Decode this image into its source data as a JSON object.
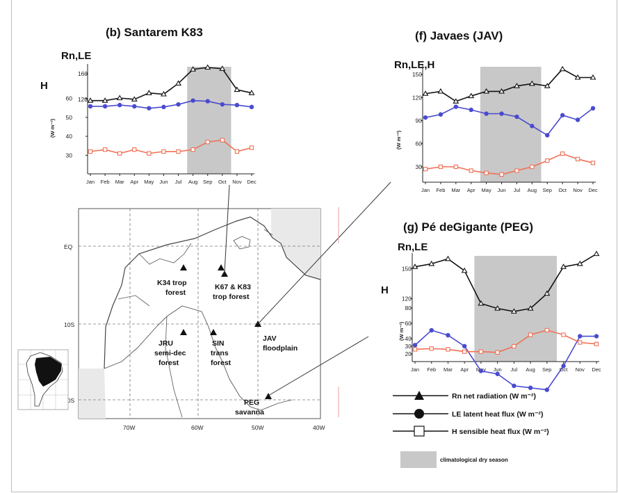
{
  "chart_data": [
    {
      "id": "santarem",
      "type": "line",
      "title": "(b)  Santarem K83",
      "ylabel_top": "Rn,LE",
      "ylabel_h": "H",
      "unit": "(W m⁻²)",
      "categories": [
        "Jan",
        "Feb",
        "Mar",
        "Apr",
        "May",
        "Jun",
        "Jul",
        "Aug",
        "Sep",
        "Oct",
        "Nov",
        "Dec"
      ],
      "upper_ticks": [
        "160",
        "120"
      ],
      "lower_ticks": [
        "60",
        "50",
        "40",
        "30"
      ],
      "dry_season": [
        6.6,
        9.6
      ],
      "series": [
        {
          "name": "Rn",
          "values": [
            118,
            118,
            122,
            120,
            130,
            128,
            145,
            167,
            170,
            168,
            135,
            130
          ]
        },
        {
          "name": "LE",
          "values": [
            109,
            109,
            111,
            109,
            106,
            108,
            112,
            118,
            117,
            112,
            111,
            108
          ]
        },
        {
          "name": "H",
          "values": [
            32,
            33,
            31,
            33,
            31,
            32,
            32,
            33,
            37,
            38,
            32,
            34
          ]
        }
      ]
    },
    {
      "id": "javaes",
      "type": "line",
      "title": "(f)   Javaes  (JAV)",
      "ylabel_top": "Rn,LE,H",
      "unit": "(W m⁻²)",
      "categories": [
        "Jan",
        "Feb",
        "Mar",
        "Apr",
        "May",
        "Jun",
        "Jul",
        "Aug",
        "Sep",
        "Oct",
        "Nov",
        "Dec"
      ],
      "ticks": [
        "150",
        "120",
        "90",
        "60",
        "30"
      ],
      "dry_season": [
        3.6,
        7.6
      ],
      "series": [
        {
          "name": "Rn",
          "values": [
            125,
            128,
            115,
            122,
            128,
            128,
            135,
            138,
            135,
            157,
            146,
            146
          ]
        },
        {
          "name": "LE",
          "values": [
            94,
            98,
            108,
            104,
            99,
            99,
            95,
            83,
            71,
            97,
            91,
            106
          ]
        },
        {
          "name": "H",
          "values": [
            27,
            30,
            30,
            25,
            22,
            20,
            25,
            30,
            38,
            47,
            40,
            35
          ]
        }
      ]
    },
    {
      "id": "pedegigante",
      "type": "line",
      "title": "(g)   Pé deGigante (PEG)",
      "ylabel_top": "Rn,LE",
      "ylabel_h": "H",
      "unit": "(W m⁻²)",
      "categories": [
        "Jan",
        "Feb",
        "Mar",
        "Apr",
        "May",
        "Jun",
        "Jul",
        "Aug",
        "Sep",
        "Oct",
        "Nov",
        "Dec"
      ],
      "upper_ticks": [
        "150",
        "120"
      ],
      "lower_ticks": [
        "80",
        "60",
        "40",
        "30",
        "20"
      ],
      "dry_season": [
        3.6,
        8.6
      ],
      "series": [
        {
          "name": "Rn",
          "values": [
            152,
            155,
            160,
            148,
            115,
            110,
            107,
            110,
            125,
            152,
            155,
            165
          ]
        },
        {
          "name": "LE",
          "values": [
            73,
            88,
            83,
            72,
            47,
            44,
            32,
            30,
            28,
            52,
            82,
            82
          ]
        },
        {
          "name": "H",
          "values": [
            26,
            27,
            26,
            23,
            23,
            22,
            30,
            45,
            51,
            45,
            35,
            33
          ]
        }
      ]
    }
  ],
  "map": {
    "lat_labels": [
      "EQ",
      "10S",
      "20S"
    ],
    "lon_labels": [
      "70W",
      "60W",
      "50W",
      "40W"
    ],
    "sites": [
      {
        "line1": "K34 trop",
        "line2": "forest"
      },
      {
        "line1": "K67 & K83",
        "line2": "trop forest"
      },
      {
        "line1": "JAV",
        "line2": "floodplain"
      },
      {
        "line1": "JRU",
        "line2": "semi-dec",
        "line3": "forest"
      },
      {
        "line1": "SIN",
        "line2": "trans",
        "line3": "forest"
      },
      {
        "line1": "PEG",
        "line2": "savanna"
      }
    ]
  },
  "legend": {
    "rn": "Rn  net radiation (W m⁻²)",
    "le": "LE latent heat flux  (W m⁻²)",
    "h": "H sensible heat flux  (W m⁻²)",
    "dry": "climatological dry season"
  },
  "colors": {
    "rn": "#111111",
    "le": "#4a4ad0",
    "h": "#f07055",
    "dry": "#c8c8c8"
  }
}
